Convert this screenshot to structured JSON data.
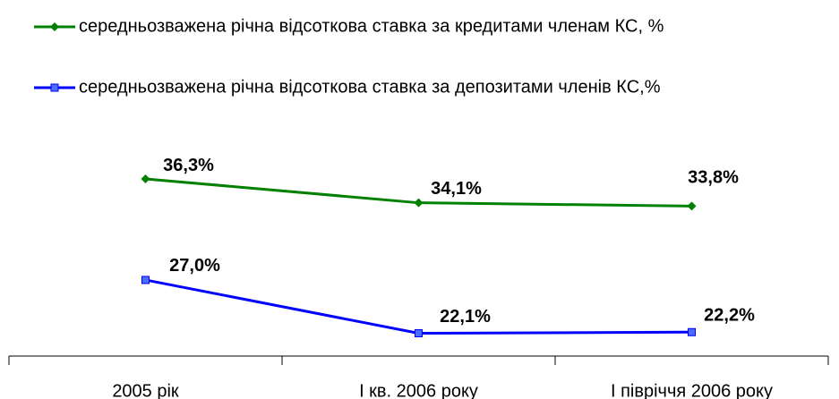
{
  "chart_data": {
    "type": "line",
    "categories": [
      "2005 рік",
      "I кв. 2006 року",
      "I півріччя 2006 року"
    ],
    "series": [
      {
        "name": "середньозважена річна відсоткова ставка за кредитами членам КС, %",
        "color": "#008000",
        "marker": "diamond",
        "values": [
          36.3,
          34.1,
          33.8
        ],
        "value_labels": [
          "36,3%",
          "34,1%",
          "33,8%"
        ]
      },
      {
        "name": "середньозважена річна відсоткова ставка за депозитами членів КС,%",
        "color": "#0000ff",
        "marker": "square",
        "values": [
          27.0,
          22.1,
          22.2
        ],
        "value_labels": [
          "27,0%",
          "22,1%",
          "22,2%"
        ]
      }
    ],
    "ylim": [
      20,
      40
    ],
    "legend": "top"
  }
}
